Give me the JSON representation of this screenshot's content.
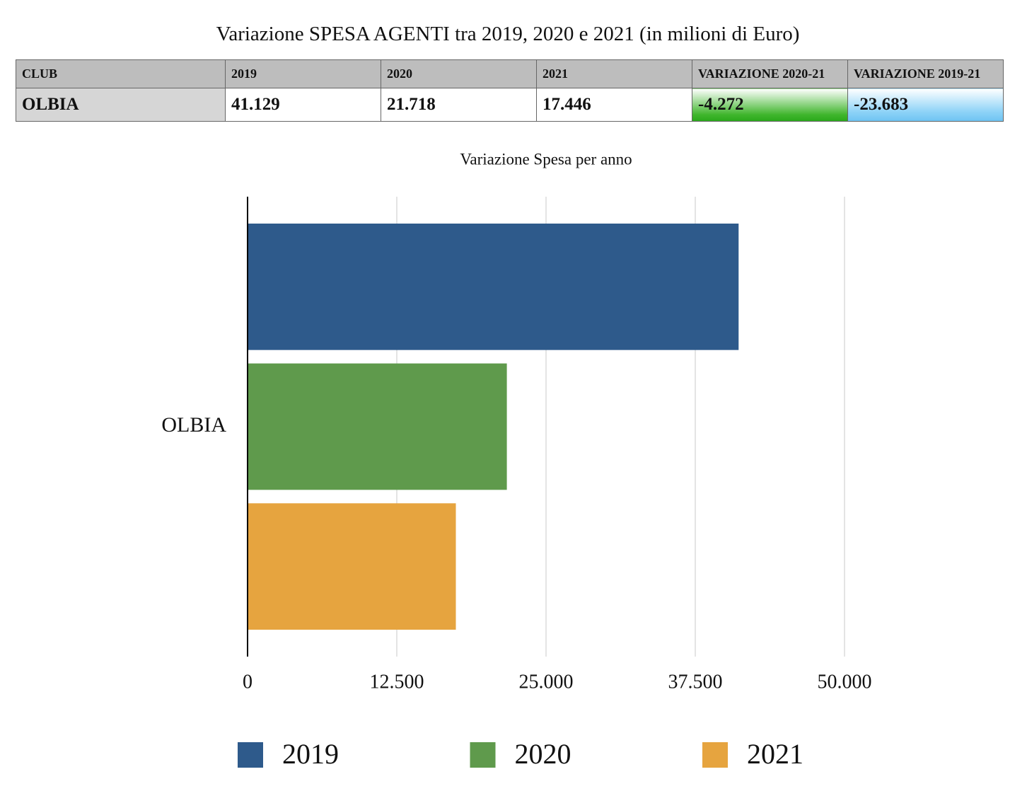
{
  "title": "Variazione SPESA AGENTI tra 2019, 2020 e 2021 (in milioni di Euro)",
  "table": {
    "header": [
      "CLUB",
      "2019",
      "2020",
      "2021",
      "VARIAZIONE 2020-21",
      "VARIAZIONE 2019-21"
    ],
    "rows": [
      [
        "OLBIA",
        "41.129",
        "21.718",
        "17.446",
        "-4.272",
        "-23.683"
      ]
    ]
  },
  "chart_data": {
    "type": "bar",
    "orientation": "horizontal",
    "title": "Variazione Spesa per anno",
    "categories": [
      "OLBIA"
    ],
    "series": [
      {
        "name": "2019",
        "color": "#2e5a8b",
        "values": [
          41129
        ]
      },
      {
        "name": "2020",
        "color": "#5f9a4c",
        "values": [
          21718
        ]
      },
      {
        "name": "2021",
        "color": "#e6a43f",
        "values": [
          17446
        ]
      }
    ],
    "xlim": [
      0,
      50000
    ],
    "xticks": [
      0,
      {
        "value": 12500,
        "label": "12.500"
      },
      {
        "value": 25000,
        "label": "25.000"
      },
      {
        "value": 37500,
        "label": "37.500"
      },
      {
        "value": 50000,
        "label": "50.000"
      }
    ],
    "grid": true,
    "legend": "bottom"
  }
}
